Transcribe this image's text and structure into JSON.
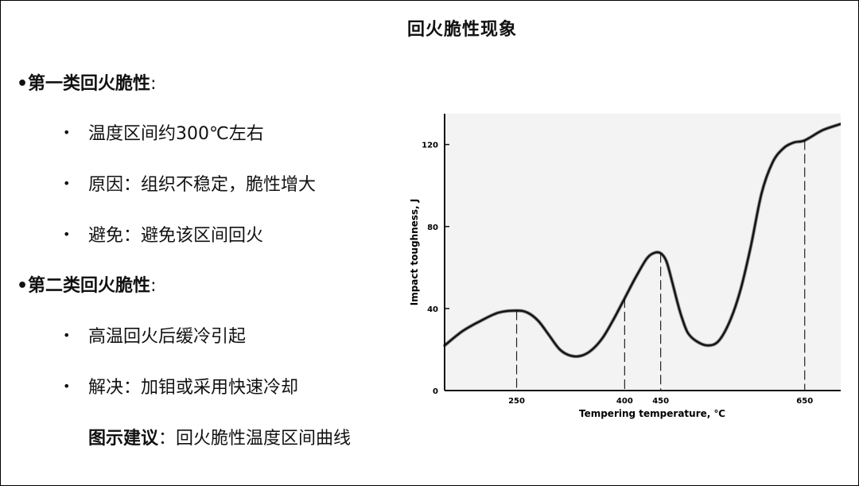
{
  "slide": {
    "title": "回火脆性现象",
    "first_type": {
      "heading": "•第一类回火脆性",
      "colon": ":"
    },
    "first_items": [
      {
        "bullet": "•",
        "text": "温度区间约300℃左右"
      },
      {
        "bullet": "•",
        "text": "原因：组织不稳定，脆性增大"
      },
      {
        "bullet": "•",
        "text": "避免：避免该区间回火"
      }
    ],
    "second_type": {
      "heading": "•第二类回火脆性",
      "colon": ":"
    },
    "second_items": [
      {
        "bullet": "•",
        "text": "高温回火后缓冷引起"
      },
      {
        "bullet": "•",
        "text": "解决：加钼或采用快速冷却"
      }
    ],
    "suggestion": {
      "label": "图示建议",
      "text": "：回火脆性温度区间曲线"
    }
  },
  "chart_data": {
    "type": "line",
    "xlabel": "Tempering temperature, ℃",
    "ylabel": "Impact toughness, J",
    "xlim": [
      150,
      700
    ],
    "ylim": [
      0,
      135
    ],
    "x_ticks": [
      250,
      400,
      450,
      650
    ],
    "y_ticks": [
      0,
      40,
      80,
      120
    ],
    "grid": false,
    "series": [
      {
        "x": [
          150,
          175,
          200,
          225,
          250,
          265,
          280,
          295,
          310,
          325,
          340,
          355,
          370,
          385,
          400,
          415,
          430,
          440,
          450,
          458,
          466,
          474,
          480,
          488,
          500,
          515,
          530,
          545,
          560,
          575,
          590,
          605,
          620,
          635,
          650,
          675,
          700
        ],
        "values": [
          22,
          29,
          34,
          38,
          39,
          38,
          34,
          27,
          20,
          17,
          17,
          20,
          26,
          35,
          45,
          55,
          64,
          67,
          67,
          63,
          53,
          42,
          35,
          28,
          24,
          22,
          24,
          33,
          48,
          70,
          96,
          111,
          118,
          121,
          122,
          127,
          130
        ]
      }
    ],
    "reference_lines_x": [
      250,
      400,
      450,
      650
    ]
  }
}
